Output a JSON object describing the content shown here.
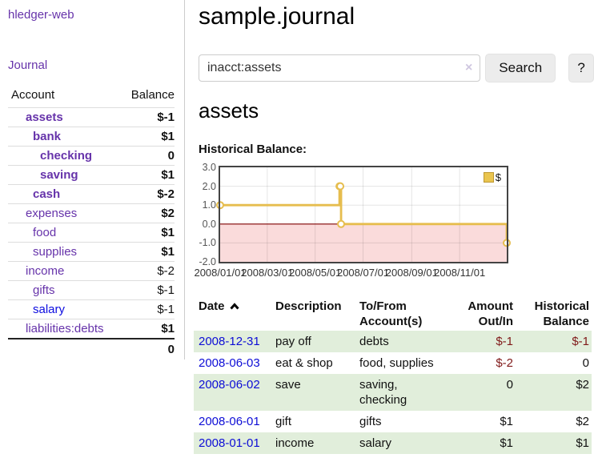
{
  "app": {
    "title": "hledger-web"
  },
  "colors": {
    "link_purple": "#6633aa",
    "link_blue": "#0d0de0",
    "negative_dark_red": "#801919",
    "negative_light_red": "#b46a6a",
    "row_stripe_green": "#e1eedb",
    "chart_gold": "#e6bd4e",
    "chart_negative_fill": "#fadbdb",
    "zero_line": "#7f0000"
  },
  "sidebar": {
    "journal_link": "Journal",
    "headers": {
      "account": "Account",
      "balance": "Balance"
    },
    "accounts": [
      {
        "name": "assets",
        "balance": "$-1",
        "depth": 1,
        "emph": true,
        "negative": "dark",
        "link": "purple"
      },
      {
        "name": "bank",
        "balance": "$1",
        "depth": 2,
        "emph": true,
        "negative": null,
        "link": "purple"
      },
      {
        "name": "checking",
        "balance": "0",
        "depth": 3,
        "emph": true,
        "negative": null,
        "link": "purple"
      },
      {
        "name": "saving",
        "balance": "$1",
        "depth": 3,
        "emph": true,
        "negative": null,
        "link": "purple"
      },
      {
        "name": "cash",
        "balance": "$-2",
        "depth": 2,
        "emph": true,
        "negative": "dark",
        "link": "purple"
      },
      {
        "name": "expenses",
        "balance": "$2",
        "depth": 1,
        "emph": false,
        "negative": null,
        "link": "purple"
      },
      {
        "name": "food",
        "balance": "$1",
        "depth": 2,
        "emph": false,
        "negative": null,
        "link": "purple"
      },
      {
        "name": "supplies",
        "balance": "$1",
        "depth": 2,
        "emph": false,
        "negative": null,
        "link": "purple"
      },
      {
        "name": "income",
        "balance": "$-2",
        "depth": 1,
        "emph": false,
        "negative": "light",
        "link": "purple"
      },
      {
        "name": "gifts",
        "balance": "$-1",
        "depth": 2,
        "emph": false,
        "negative": "light",
        "link": "purple"
      },
      {
        "name": "salary",
        "balance": "$-1",
        "depth": 2,
        "emph": false,
        "negative": "light",
        "link": "blue"
      },
      {
        "name": "liabilities:debts",
        "balance": "$1",
        "depth": 1,
        "emph": false,
        "negative": null,
        "link": "purple"
      }
    ],
    "total": "0"
  },
  "main": {
    "title": "sample.journal",
    "search": {
      "value": "inacct:assets",
      "clear_icon": "×",
      "button_label": "Search",
      "help_label": "?"
    },
    "heading": "assets",
    "chart_label": "Historical Balance:"
  },
  "chart_data": {
    "type": "line",
    "style": "step-after",
    "title": "Historical Balance:",
    "legend_position": "top-right",
    "grid": true,
    "ylim": [
      -2,
      3
    ],
    "xlim_days": [
      0,
      365
    ],
    "yticks": [
      {
        "label": "3.0",
        "value": 3
      },
      {
        "label": "2.0",
        "value": 2
      },
      {
        "label": "1.0",
        "value": 1
      },
      {
        "label": "0.0",
        "value": 0
      },
      {
        "label": "-1.0",
        "value": -1
      },
      {
        "label": "-2.0",
        "value": -2
      }
    ],
    "xticks": [
      {
        "label": "2008/01/01",
        "day": 0
      },
      {
        "label": "2008/03/01",
        "day": 60
      },
      {
        "label": "2008/05/01",
        "day": 121
      },
      {
        "label": "2008/07/01",
        "day": 182
      },
      {
        "label": "2008/09/01",
        "day": 244
      },
      {
        "label": "2008/11/01",
        "day": 305
      }
    ],
    "series": [
      {
        "name": "$",
        "color": "#e6bd4e",
        "points": [
          {
            "date": "2008-01-01",
            "day": 0,
            "value": 1
          },
          {
            "date": "2008-06-01",
            "day": 152,
            "value": 2
          },
          {
            "date": "2008-06-02",
            "day": 153,
            "value": 2
          },
          {
            "date": "2008-06-03",
            "day": 154,
            "value": 0
          },
          {
            "date": "2008-12-31",
            "day": 365,
            "value": -1
          }
        ]
      }
    ],
    "negative_region_color": "#fadbdb",
    "zero_line_color": "#7f0000"
  },
  "register": {
    "headers": [
      "Date",
      "Description",
      "To/From Account(s)",
      "Amount Out/In",
      "Historical Balance"
    ],
    "rows": [
      {
        "date": "2008-12-31",
        "description": "pay off",
        "accounts": "debts",
        "amount": "$-1",
        "amount_negative": true,
        "balance": "$-1",
        "balance_negative": true
      },
      {
        "date": "2008-06-03",
        "description": "eat & shop",
        "accounts": "food, supplies",
        "amount": "$-2",
        "amount_negative": true,
        "balance": "0",
        "balance_negative": false
      },
      {
        "date": "2008-06-02",
        "description": "save",
        "accounts": "saving, checking",
        "amount": "0",
        "amount_negative": false,
        "balance": "$2",
        "balance_negative": false
      },
      {
        "date": "2008-06-01",
        "description": "gift",
        "accounts": "gifts",
        "amount": "$1",
        "amount_negative": false,
        "balance": "$2",
        "balance_negative": false
      },
      {
        "date": "2008-01-01",
        "description": "income",
        "accounts": "salary",
        "amount": "$1",
        "amount_negative": false,
        "balance": "$1",
        "balance_negative": false
      }
    ]
  }
}
